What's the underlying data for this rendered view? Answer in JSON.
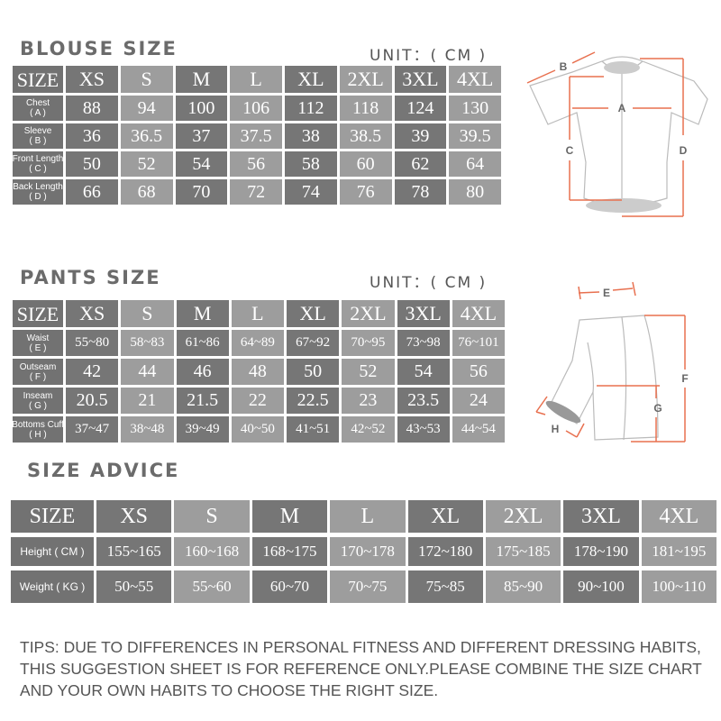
{
  "blouse": {
    "title": "BLOUSE SIZE",
    "unit": "UNIT：( CM )",
    "header_label": "SIZE",
    "sizes": [
      "XS",
      "S",
      "M",
      "L",
      "XL",
      "2XL",
      "3XL",
      "4XL"
    ],
    "rows": [
      {
        "label": "Chest",
        "code": "( A )",
        "values": [
          "88",
          "94",
          "100",
          "106",
          "112",
          "118",
          "124",
          "130"
        ]
      },
      {
        "label": "Sleeve",
        "code": "( B )",
        "values": [
          "36",
          "36.5",
          "37",
          "37.5",
          "38",
          "38.5",
          "39",
          "39.5"
        ]
      },
      {
        "label": "Front Length",
        "code": "( C )",
        "values": [
          "50",
          "52",
          "54",
          "56",
          "58",
          "60",
          "62",
          "64"
        ]
      },
      {
        "label": "Back Length",
        "code": "( D )",
        "values": [
          "66",
          "68",
          "70",
          "72",
          "74",
          "76",
          "78",
          "80"
        ]
      }
    ]
  },
  "pants": {
    "title": "PANTS SIZE",
    "unit": "UNIT：( CM )",
    "header_label": "SIZE",
    "sizes": [
      "XS",
      "S",
      "M",
      "L",
      "XL",
      "2XL",
      "3XL",
      "4XL"
    ],
    "rows": [
      {
        "label": "Waist",
        "code": "( E )",
        "values": [
          "55~80",
          "58~83",
          "61~86",
          "64~89",
          "67~92",
          "70~95",
          "73~98",
          "76~101"
        ]
      },
      {
        "label": "Outseam",
        "code": "( F )",
        "values": [
          "42",
          "44",
          "46",
          "48",
          "50",
          "52",
          "54",
          "56"
        ]
      },
      {
        "label": "Inseam",
        "code": "( G )",
        "values": [
          "20.5",
          "21",
          "21.5",
          "22",
          "22.5",
          "23",
          "23.5",
          "24"
        ]
      },
      {
        "label": "Bottoms Cuff",
        "code": "( H )",
        "values": [
          "37~47",
          "38~48",
          "39~49",
          "40~50",
          "41~51",
          "42~52",
          "43~53",
          "44~54"
        ]
      }
    ]
  },
  "advice": {
    "title": "SIZE ADVICE",
    "header_label": "SIZE",
    "sizes": [
      "XS",
      "S",
      "M",
      "L",
      "XL",
      "2XL",
      "3XL",
      "4XL"
    ],
    "rows": [
      {
        "label": "Height ( CM )",
        "values": [
          "155~165",
          "160~168",
          "168~175",
          "170~178",
          "172~180",
          "175~185",
          "178~190",
          "181~195"
        ]
      },
      {
        "label": "Weight ( KG )",
        "values": [
          "50~55",
          "55~60",
          "60~70",
          "70~75",
          "75~85",
          "85~90",
          "90~100",
          "100~110"
        ]
      }
    ]
  },
  "diagram": {
    "jersey_labels": [
      "A",
      "B",
      "C",
      "D"
    ],
    "pants_labels": [
      "E",
      "F",
      "G",
      "H"
    ],
    "accent_color": "#e8704f"
  },
  "tips": "TIPS: DUE TO DIFFERENCES IN PERSONAL FITNESS AND DIFFERENT DRESSING HABITS, THIS SUGGESTION SHEET IS FOR REFERENCE ONLY.PLEASE COMBINE THE SIZE CHART AND YOUR OWN HABITS TO CHOOSE THE RIGHT SIZE.",
  "colors": {
    "dark_cell": "#767676",
    "light_cell": "#9d9d9d",
    "text": "#555555"
  }
}
